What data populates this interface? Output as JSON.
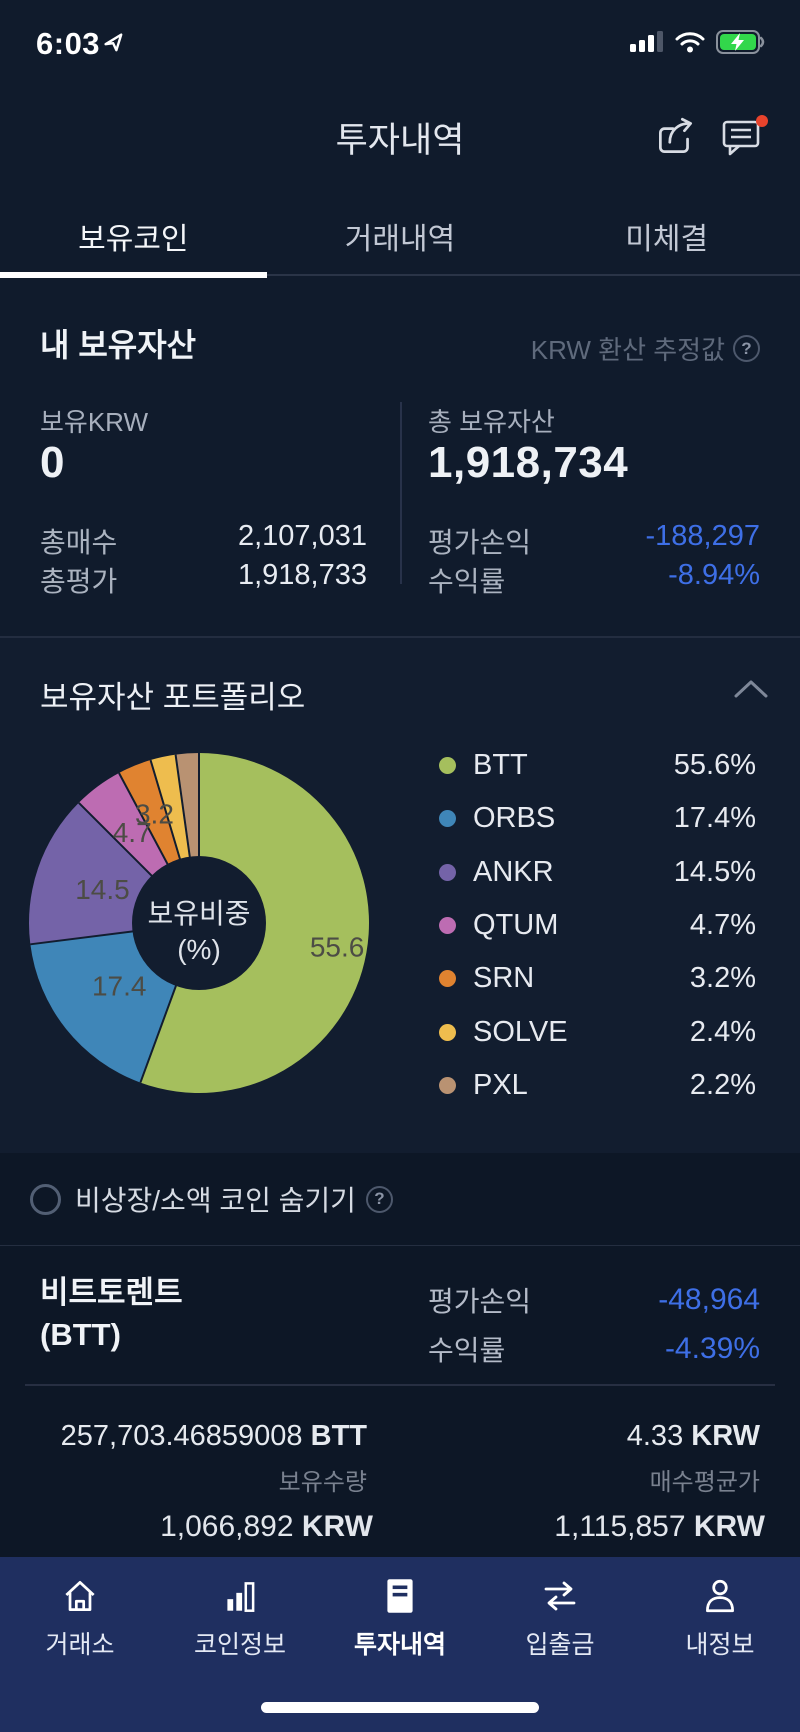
{
  "status_bar": {
    "time": "6:03"
  },
  "header": {
    "title": "투자내역"
  },
  "tabs": [
    {
      "label": "보유코인",
      "active": true
    },
    {
      "label": "거래내역",
      "active": false
    },
    {
      "label": "미체결",
      "active": false
    }
  ],
  "assets": {
    "section_title": "내 보유자산",
    "krw_estimate_note": "KRW 환산 추정값",
    "holding_krw_label": "보유KRW",
    "holding_krw_value": "0",
    "total_assets_label": "총 보유자산",
    "total_assets_value": "1,918,734",
    "total_buy_label": "총매수",
    "total_buy_value": "2,107,031",
    "total_eval_label": "총평가",
    "total_eval_value": "1,918,733",
    "pl_label": "평가손익",
    "pl_value": "-188,297",
    "yield_label": "수익률",
    "yield_value": "-8.94%"
  },
  "portfolio": {
    "section_title": "보유자산 포트폴리오",
    "center_line1": "보유비중",
    "center_line2": "(%)"
  },
  "chart_data": {
    "type": "pie",
    "donut": true,
    "title": "보유자산 포트폴리오",
    "center_label": "보유비중 (%)",
    "unit": "%",
    "legend_position": "right",
    "series": [
      {
        "name": "BTT",
        "value": 55.6,
        "color": "#a5bf5d",
        "show_slice_label": true
      },
      {
        "name": "ORBS",
        "value": 17.4,
        "color": "#3f86b8",
        "show_slice_label": true
      },
      {
        "name": "ANKR",
        "value": 14.5,
        "color": "#7463a8",
        "show_slice_label": true
      },
      {
        "name": "QTUM",
        "value": 4.7,
        "color": "#bd6cb2",
        "show_slice_label": true
      },
      {
        "name": "SRN",
        "value": 3.2,
        "color": "#e08330",
        "show_slice_label": true
      },
      {
        "name": "SOLVE",
        "value": 2.4,
        "color": "#eebd4e",
        "show_slice_label": false
      },
      {
        "name": "PXL",
        "value": 2.2,
        "color": "#b99272",
        "show_slice_label": false
      }
    ]
  },
  "hide_row": {
    "label": "비상장/소액 코인 숨기기"
  },
  "coin_detail": {
    "name_line1": "비트토렌트",
    "name_line2": "(BTT)",
    "pl_label": "평가손익",
    "pl_value": "-48,964",
    "yield_label": "수익률",
    "yield_value": "-4.39%",
    "qty_value": "257,703.46859008",
    "qty_unit": "BTT",
    "qty_label": "보유수량",
    "avg_value": "4.33",
    "avg_unit": "KRW",
    "avg_label": "매수평균가",
    "eval_value": "1,066,892",
    "eval_unit": "KRW",
    "buy_value": "1,115,857",
    "buy_unit": "KRW"
  },
  "nav": [
    {
      "label": "거래소",
      "active": false
    },
    {
      "label": "코인정보",
      "active": false
    },
    {
      "label": "투자내역",
      "active": true
    },
    {
      "label": "입출금",
      "active": false
    },
    {
      "label": "내정보",
      "active": false
    }
  ],
  "colors": {
    "negative_blue": "#3e6fe6",
    "nav_bg": "#1f2f60",
    "battery_green": "#32d74b",
    "badge_red": "#e8432c",
    "slice_label": "#4c4c45"
  }
}
